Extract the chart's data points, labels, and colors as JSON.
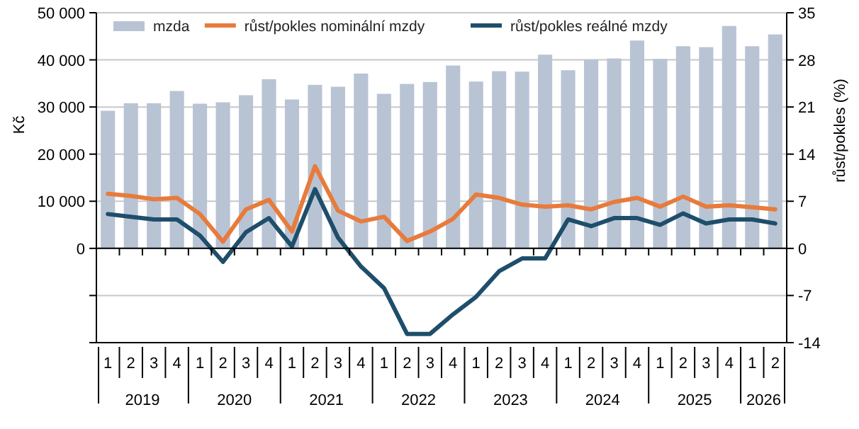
{
  "chart_data": {
    "type": "bar",
    "ylabel": "Kč",
    "y2label": "růst/pokles (%)",
    "categories": [
      "1",
      "2",
      "3",
      "4",
      "1",
      "2",
      "3",
      "4",
      "1",
      "2",
      "3",
      "4",
      "1",
      "2",
      "3",
      "4",
      "1",
      "2",
      "3",
      "4",
      "1",
      "2",
      "3",
      "4",
      "1",
      "2",
      "3",
      "4",
      "1",
      "2"
    ],
    "series": [
      {
        "name": "mzda",
        "color": "#b8c4d4",
        "values": [
          29200,
          30800,
          30800,
          33400,
          30700,
          31000,
          32500,
          35900,
          31600,
          34700,
          34300,
          37100,
          32800,
          34900,
          35300,
          38800,
          35400,
          37600,
          37500,
          41100,
          37800,
          40100,
          40300,
          44100,
          40200,
          42900,
          42700,
          47200,
          42900,
          45400
        ]
      },
      {
        "name": "růst/pokles nominální mzdy",
        "type": "line",
        "axis": "y2",
        "color": "#e87b3c",
        "values": [
          8.1,
          7.8,
          7.3,
          7.5,
          5.1,
          1.0,
          5.8,
          7.2,
          2.5,
          12.2,
          5.6,
          4.0,
          4.7,
          1.1,
          2.5,
          4.4,
          8.0,
          7.5,
          6.5,
          6.2,
          6.4,
          5.8,
          6.9,
          7.5,
          6.2,
          7.7,
          6.2,
          6.4,
          6.1,
          5.8
        ]
      },
      {
        "name": "růst/pokles reálné mzdy",
        "type": "line",
        "axis": "y2",
        "color": "#1f4e6b",
        "values": [
          5.1,
          4.7,
          4.3,
          4.3,
          1.9,
          -2.0,
          2.4,
          4.5,
          0.3,
          8.8,
          1.6,
          -2.7,
          -5.9,
          -12.7,
          -12.7,
          -9.8,
          -7.2,
          -3.4,
          -1.5,
          -1.5,
          4.3,
          3.3,
          4.5,
          4.5,
          3.5,
          5.2,
          3.7,
          4.3,
          4.3,
          3.7
        ]
      }
    ],
    "ylim": [
      -20000,
      50000
    ],
    "yticks": [
      {
        "value": -20000,
        "label": null
      },
      {
        "value": -10000,
        "label": null
      },
      {
        "value": 0,
        "label": "0"
      },
      {
        "value": 10000,
        "label": "10 000"
      },
      {
        "value": 20000,
        "label": "20 000"
      },
      {
        "value": 30000,
        "label": "30 000"
      },
      {
        "value": 40000,
        "label": "40 000"
      },
      {
        "value": 50000,
        "label": "50 000"
      }
    ],
    "y2lim": [
      -14,
      35
    ],
    "y2ticks": [
      -14,
      -7,
      0,
      7,
      14,
      21,
      28,
      35
    ],
    "annotations": [
      "2019",
      "2020",
      "2021",
      "2022",
      "2023",
      "2024",
      "2025",
      "2026"
    ],
    "grid": "y",
    "legend": "top",
    "marker": "none",
    "line_style": "solid"
  }
}
